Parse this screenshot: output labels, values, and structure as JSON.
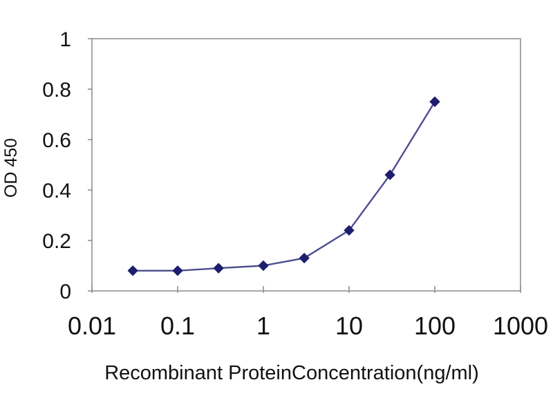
{
  "figure": {
    "background": "#ffffff"
  },
  "chart_data": {
    "type": "line",
    "title": "",
    "xlabel": "Recombinant ProteinConcentration(ng/ml)",
    "ylabel": "OD 450",
    "x_scale": "log",
    "x_range": [
      0.01,
      1000
    ],
    "x_ticks": [
      "0.01",
      "0.1",
      "1",
      "10",
      "100",
      "1000"
    ],
    "x_tick_values": [
      0.01,
      0.1,
      1,
      10,
      100,
      1000
    ],
    "y_range": [
      0,
      1
    ],
    "y_ticks": [
      "0",
      "0.2",
      "0.4",
      "0.6",
      "0.8",
      "1"
    ],
    "y_tick_values": [
      0,
      0.2,
      0.4,
      0.6,
      0.8,
      1
    ],
    "grid": "horizontal",
    "legend": "none",
    "series": [
      {
        "name": "OD 450",
        "marker": "diamond",
        "x": [
          0.03,
          0.1,
          0.3,
          1,
          3,
          10,
          30,
          100
        ],
        "y": [
          0.08,
          0.08,
          0.09,
          0.1,
          0.13,
          0.24,
          0.46,
          0.75
        ]
      }
    ],
    "colors": {
      "line": "#4d4d8f",
      "marker": "#1e1e6e",
      "gridline": "#c9c9c9",
      "axis_border": "#8f8f8f",
      "text": "#111111",
      "plot_background": "#ffffff"
    }
  }
}
